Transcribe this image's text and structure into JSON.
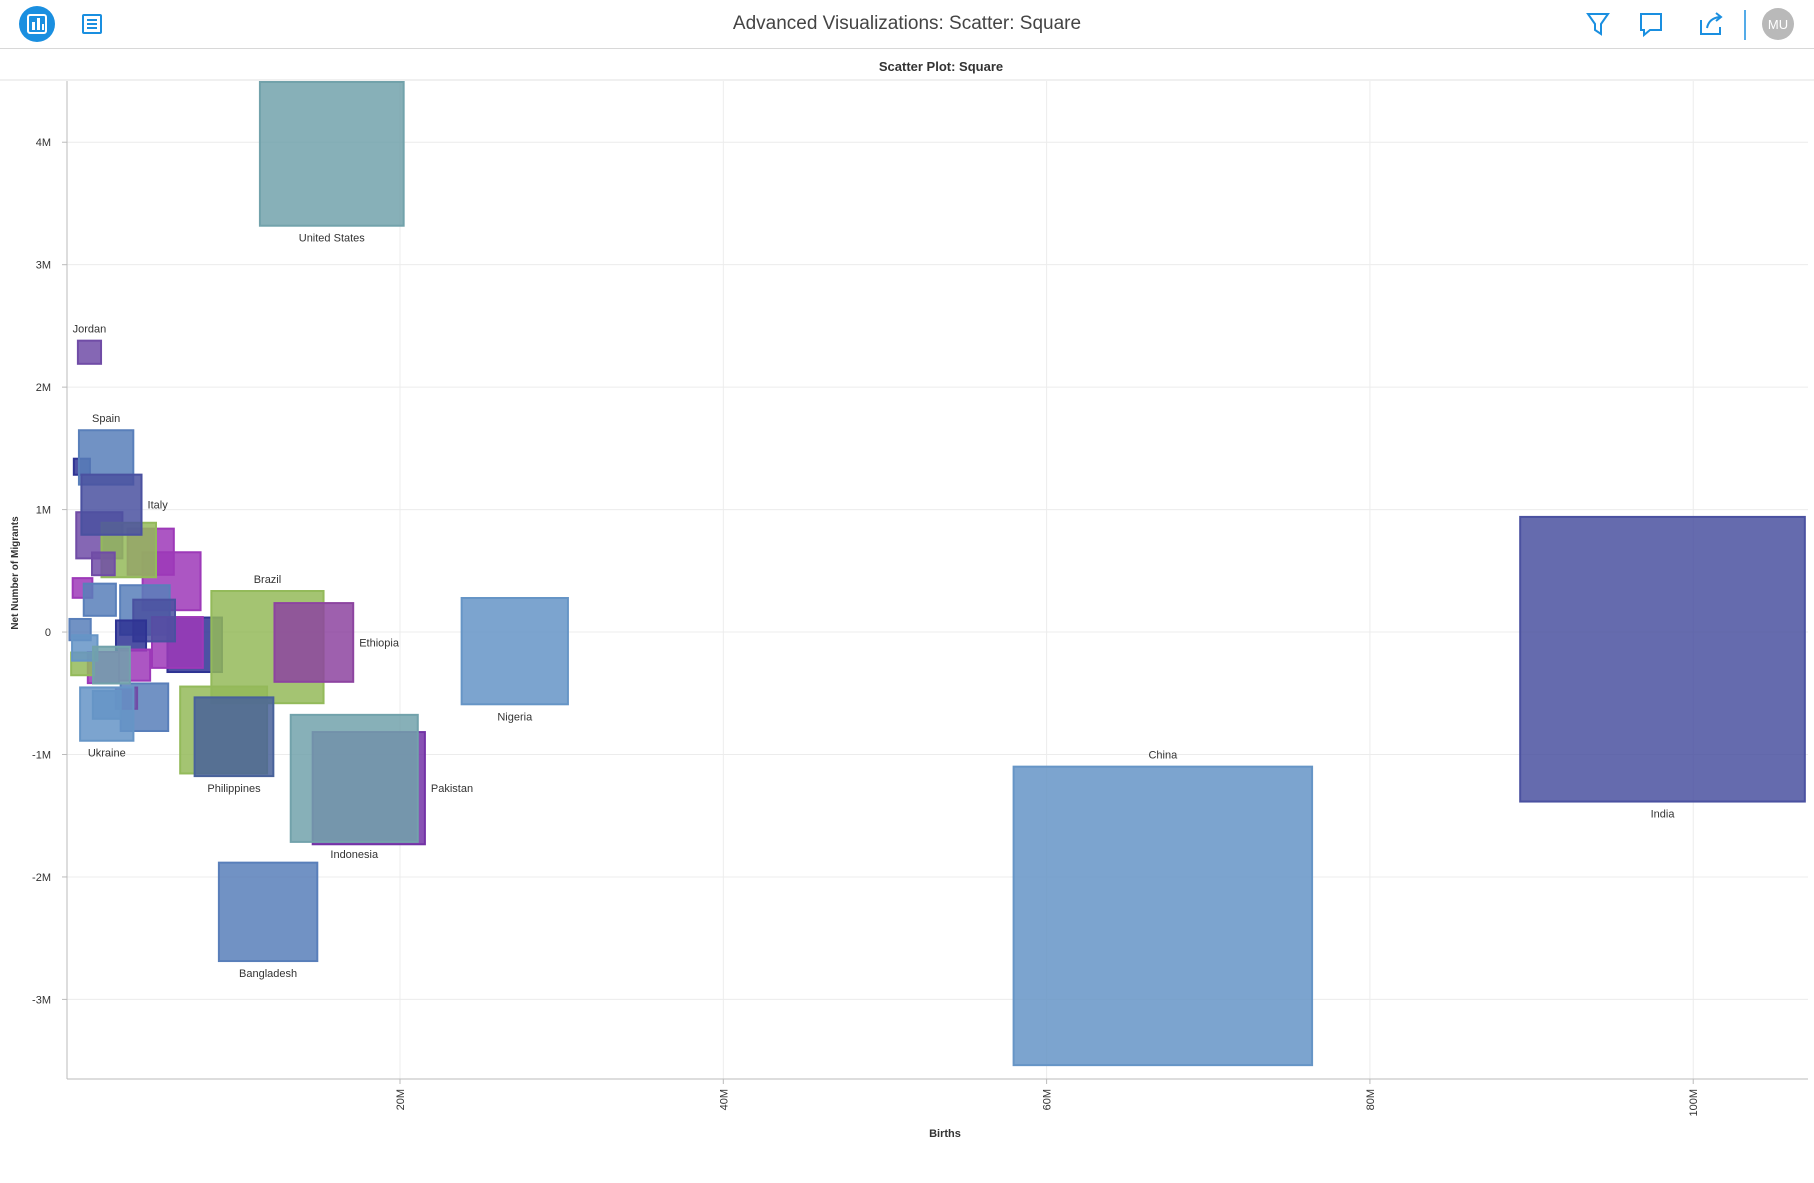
{
  "header": {
    "title": "Advanced Visualizations: Scatter: Square",
    "avatar": "MU"
  },
  "chart_data": {
    "type": "scatter",
    "title": "Scatter Plot: Square",
    "x_label": "Births",
    "y_label": "Net Number of Migrants",
    "xlim": [
      -600000,
      107100000
    ],
    "ylim": [
      -3650000,
      4500000
    ],
    "xticks": [
      {
        "value": 20000000,
        "label": "20M"
      },
      {
        "value": 40000000,
        "label": "40M"
      },
      {
        "value": 60000000,
        "label": "60M"
      },
      {
        "value": 80000000,
        "label": "80M"
      },
      {
        "value": 100000000,
        "label": "100M"
      }
    ],
    "yticks": [
      {
        "value": -3000000,
        "label": "-3M"
      },
      {
        "value": -2000000,
        "label": "-2M"
      },
      {
        "value": -1000000,
        "label": "-1M"
      },
      0,
      {
        "value": 1000000,
        "label": "1M"
      },
      {
        "value": 2000000,
        "label": "2M"
      },
      {
        "value": 3000000,
        "label": "3M"
      },
      {
        "value": 4000000,
        "label": "4M"
      }
    ],
    "grid": true,
    "labels": [
      null,
      null,
      null,
      null,
      null,
      null,
      null,
      null,
      null,
      null,
      null,
      null,
      null,
      null,
      null,
      null,
      null,
      null,
      null,
      null,
      null,
      null,
      null,
      "United States",
      "Jordan",
      "Spain",
      "Italy",
      "Brazil",
      "Ethiopia",
      "Nigeria",
      "Ukraine",
      "Philippines",
      "Pakistan",
      "Indonesia",
      "Bangladesh",
      "China",
      "India"
    ],
    "x": [
      320000,
      1400000,
      4580000,
      5870000,
      3220000,
      4220000,
      7300000,
      6230000,
      4790000,
      3360000,
      9090000,
      4190000,
      3080000,
      1860000,
      1650000,
      3580000,
      360000,
      210000,
      360000,
      1650000,
      1430000,
      500000,
      2150000,
      15780000,
      790000,
      1820000,
      2150000,
      11800000,
      14670000,
      27100000,
      1860000,
      9730000,
      18070000,
      17170000,
      11840000,
      67190000,
      98100000
    ],
    "values": [
      1350000,
      790000,
      656000,
      415000,
      670000,
      180000,
      -104000,
      -85000,
      94000,
      -28000,
      -800000,
      -614000,
      -540000,
      -595000,
      -290000,
      -270000,
      -260000,
      20000,
      360000,
      557000,
      264000,
      -130000,
      -270000,
      3905000,
      2285000,
      1426000,
      1040000,
      -123000,
      -85000,
      -156000,
      -670000,
      -855000,
      -1275000,
      -1195000,
      -2285000,
      -2318000,
      -222000
    ],
    "sizes": [
      4,
      33,
      33,
      52,
      46,
      38,
      46,
      40,
      27,
      14,
      117,
      35,
      7,
      12,
      15,
      15,
      8,
      7,
      6,
      8,
      16,
      10,
      21,
      320,
      8.3,
      45.8,
      56,
      195,
      96,
      175,
      44,
      96,
      195,
      250,
      150,
      1380,
      1255
    ],
    "colors": [
      "#3a40b8",
      "#8c5fd0",
      "#c447e6",
      "#c447e6",
      "#b8e870",
      "#6f9fe8",
      "#3a40b8",
      "#c447e6",
      "#5d65c8",
      "#3a40b8",
      "#b8e870",
      "#6f9fe8",
      "#8c5fd0",
      "#7fbaf8",
      "#c447e6",
      "#c447e6",
      "#b8e870",
      "#6f9fe8",
      "#c447e6",
      "#8c5fd0",
      "#6f9fe8",
      "#7fbaf8",
      "#8ecad6",
      "#8ecad6",
      "#8c5fd0",
      "#6f9fe8",
      "#5d65c8",
      "#b8e870",
      "#b055c8",
      "#7fbaf8",
      "#7fbaf8",
      "#5a7ac0",
      "#9040d0",
      "#8ecad6",
      "#6f9fe8",
      "#7fbaf8",
      "#5d65c8"
    ]
  }
}
